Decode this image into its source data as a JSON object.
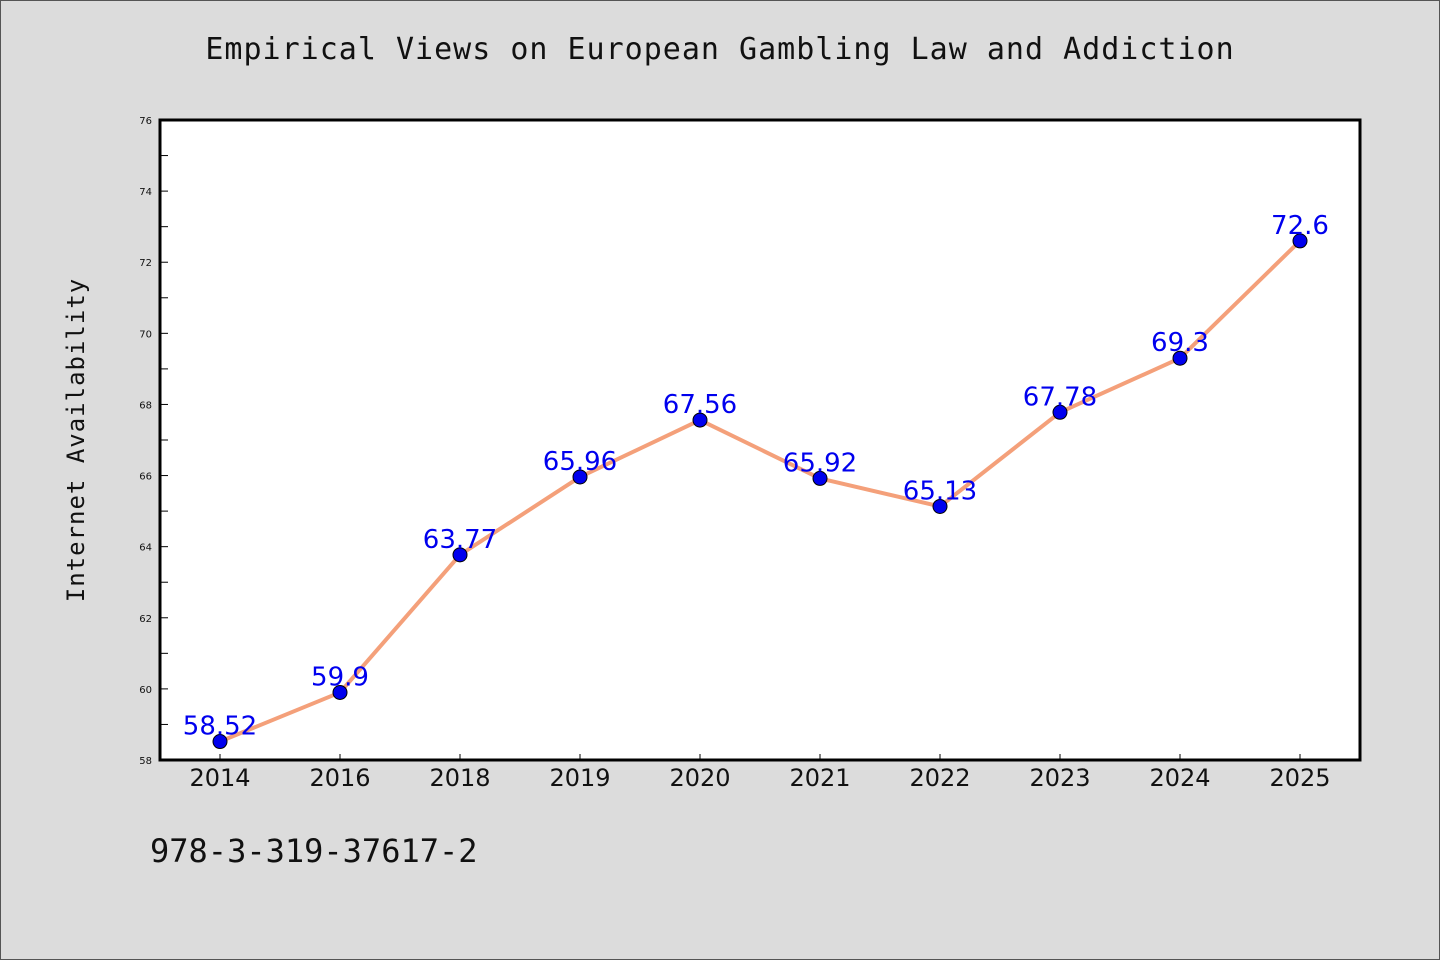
{
  "chart_data": {
    "type": "line",
    "title": "Empirical Views on European Gambling Law and Addiction",
    "xlabel": "",
    "ylabel": "Internet Availability",
    "categories": [
      "2014",
      "2016",
      "2018",
      "2019",
      "2020",
      "2021",
      "2022",
      "2023",
      "2024",
      "2025"
    ],
    "series": [
      {
        "values": [
          58.52,
          59.9,
          63.77,
          65.96,
          67.56,
          65.92,
          65.13,
          67.78,
          69.3,
          72.6
        ],
        "labels": [
          "58.52",
          "59.9",
          "63.77",
          "65.96",
          "67.56",
          "65.92",
          "65.13",
          "67.78",
          "69.3",
          "72.6"
        ],
        "line_color": "#f4a07a",
        "marker_color": "#0000ee",
        "label_color": "#0000ee"
      }
    ],
    "ylim": [
      58,
      76
    ],
    "yticks": [
      58,
      60,
      62,
      64,
      66,
      68,
      70,
      72,
      74,
      76
    ],
    "grid": false,
    "legend": "none"
  },
  "footnote": "978-3-319-37617-2",
  "colors": {
    "background": "#dcdcdc",
    "plot_background": "#ffffff",
    "axes": "#000000"
  }
}
